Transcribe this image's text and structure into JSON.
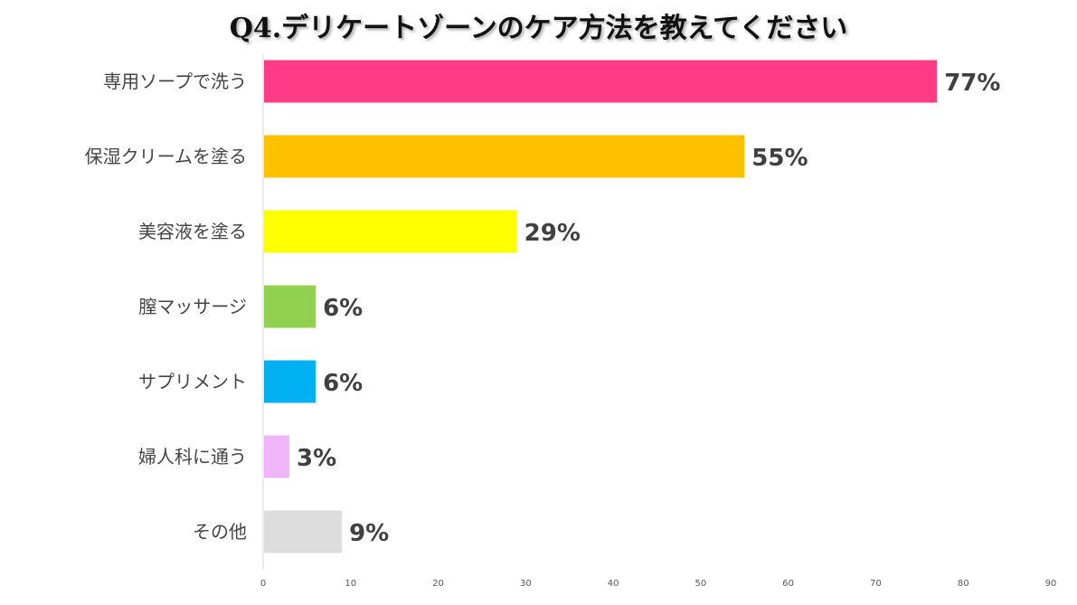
{
  "chart_data": {
    "type": "bar",
    "orientation": "horizontal",
    "title": "Q4.デリケートゾーンのケア方法を教えてください",
    "categories": [
      "専用ソープで洗う",
      "保湿クリームを塗る",
      "美容液を塗る",
      "膣マッサージ",
      "サプリメント",
      "婦人科に通う",
      "その他"
    ],
    "values": [
      77,
      55,
      29,
      6,
      6,
      3,
      9
    ],
    "value_labels": [
      "77%",
      "55%",
      "29%",
      "6%",
      "6%",
      "3%",
      "9%"
    ],
    "colors": [
      "#ff3b86",
      "#ffc000",
      "#ffff00",
      "#92d050",
      "#00b0f0",
      "#f0b4f8",
      "#dddddd"
    ],
    "xlim": [
      0,
      90
    ],
    "xticks": [
      0,
      10,
      20,
      30,
      40,
      50,
      60,
      70,
      80,
      90
    ],
    "xlabel": "",
    "ylabel": "",
    "grid": false,
    "legend": "none"
  }
}
